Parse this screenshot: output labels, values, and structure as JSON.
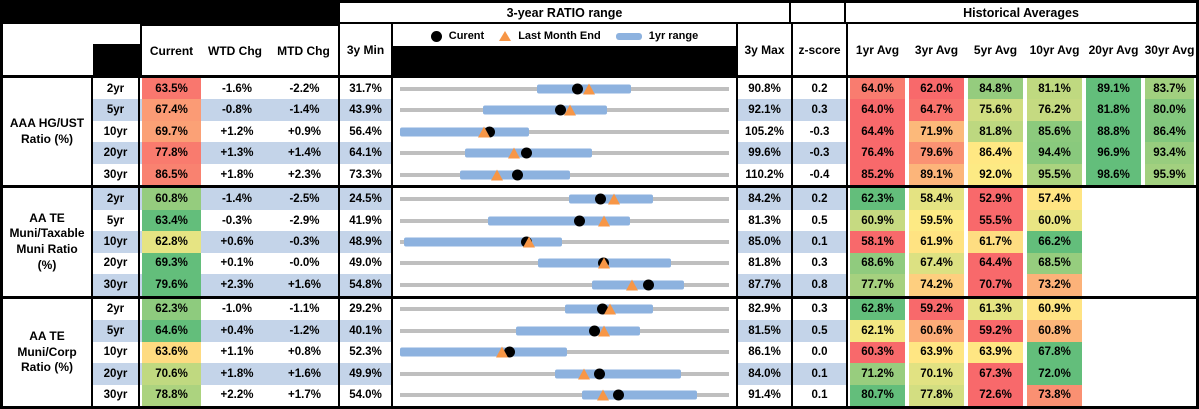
{
  "header": {
    "title_ratio_range": "3-year RATIO range",
    "title_historical": "Historical Averages",
    "col_current": "Current",
    "col_wtd": "WTD Chg",
    "col_mtd": "MTD Chg",
    "col_3y_min": "3y Min",
    "col_3y_max": "3y Max",
    "col_zscore": "z-score",
    "avg_cols": [
      "1yr Avg",
      "3yr Avg",
      "5yr Avg",
      "10yr Avg",
      "20yr Avg",
      "30yr Avg"
    ],
    "legend": {
      "current": "Curent",
      "last_month_end": "Last Month End",
      "range_1yr": "1yr range"
    }
  },
  "colors": {
    "band_blue": "#C4D4E9",
    "heat_red": "#F8696B",
    "heat_yellow": "#FFEB84",
    "heat_green": "#63BE7B",
    "range_bar_blue": "#8DB2DF",
    "track_gray": "#BFBFBF",
    "marker_orange": "#F79646",
    "marker_black": "#000000"
  },
  "chart_data": {
    "type": "table",
    "description": "Muni ratio ranges: gray track spans 3y Min to 3y Max; blue bar is 1yr range; black dot is Current; orange triangle is Last Month End; averages heat-mapped red-yellow-green per row",
    "groups": [
      {
        "label": "AAA HG/UST\nRatio (%)",
        "rows": [
          {
            "tenor": "2yr",
            "current": 63.5,
            "wtd": "-1.6%",
            "mtd": "-2.2%",
            "min3y": 31.7,
            "max3y": 90.8,
            "zscore": "0.2",
            "last_month_end": 65.7,
            "range1yr": [
              56.3,
              73.2
            ],
            "avgs": [
              64.0,
              62.0,
              84.8,
              81.1,
              89.1,
              83.7
            ]
          },
          {
            "tenor": "5yr",
            "current": 67.4,
            "wtd": "-0.8%",
            "mtd": "-1.4%",
            "min3y": 43.9,
            "max3y": 92.1,
            "zscore": "0.3",
            "last_month_end": 68.8,
            "range1yr": [
              56.0,
              74.2
            ],
            "avgs": [
              64.0,
              64.7,
              75.6,
              76.2,
              81.8,
              80.0
            ]
          },
          {
            "tenor": "10yr",
            "current": 69.7,
            "wtd": "+1.2%",
            "mtd": "+0.9%",
            "min3y": 56.4,
            "max3y": 105.2,
            "zscore": "-0.3",
            "last_month_end": 68.8,
            "range1yr": [
              56.4,
              75.5
            ],
            "avgs": [
              64.4,
              71.9,
              81.8,
              85.6,
              88.8,
              86.4
            ]
          },
          {
            "tenor": "20yr",
            "current": 77.8,
            "wtd": "+1.3%",
            "mtd": "+1.4%",
            "min3y": 64.1,
            "max3y": 99.6,
            "zscore": "-0.3",
            "last_month_end": 76.4,
            "range1yr": [
              71.1,
              84.8
            ],
            "avgs": [
              76.4,
              79.6,
              86.4,
              94.4,
              96.9,
              93.4
            ]
          },
          {
            "tenor": "30yr",
            "current": 86.5,
            "wtd": "+1.8%",
            "mtd": "+2.3%",
            "min3y": 73.3,
            "max3y": 110.2,
            "zscore": "-0.4",
            "last_month_end": 84.2,
            "range1yr": [
              80.0,
              92.4
            ],
            "avgs": [
              85.2,
              89.1,
              92.0,
              95.5,
              98.6,
              95.9
            ]
          }
        ]
      },
      {
        "label": "AA TE\nMuni/Taxable\nMuni Ratio\n(%)",
        "rows": [
          {
            "tenor": "2yr",
            "current": 60.8,
            "wtd": "-1.4%",
            "mtd": "-2.5%",
            "min3y": 24.5,
            "max3y": 84.2,
            "zscore": "0.2",
            "last_month_end": 63.3,
            "range1yr": [
              55.1,
              70.4
            ],
            "avgs": [
              62.3,
              58.4,
              52.9,
              57.4,
              null,
              null
            ]
          },
          {
            "tenor": "5yr",
            "current": 63.4,
            "wtd": "-0.3%",
            "mtd": "-2.9%",
            "min3y": 41.9,
            "max3y": 81.3,
            "zscore": "0.5",
            "last_month_end": 66.3,
            "range1yr": [
              52.4,
              69.4
            ],
            "avgs": [
              60.9,
              59.5,
              55.5,
              60.0,
              null,
              null
            ]
          },
          {
            "tenor": "10yr",
            "current": 62.8,
            "wtd": "+0.6%",
            "mtd": "-0.3%",
            "min3y": 48.9,
            "max3y": 85.0,
            "zscore": "0.1",
            "last_month_end": 63.1,
            "range1yr": [
              49.4,
              66.7
            ],
            "avgs": [
              58.1,
              61.9,
              61.7,
              66.2,
              null,
              null
            ]
          },
          {
            "tenor": "20yr",
            "current": 69.3,
            "wtd": "+0.1%",
            "mtd": "-0.0%",
            "min3y": 49.0,
            "max3y": 81.8,
            "zscore": "0.3",
            "last_month_end": 69.3,
            "range1yr": [
              62.8,
              76.0
            ],
            "avgs": [
              68.6,
              67.4,
              64.4,
              68.5,
              null,
              null
            ]
          },
          {
            "tenor": "30yr",
            "current": 79.6,
            "wtd": "+2.3%",
            "mtd": "+1.6%",
            "min3y": 54.8,
            "max3y": 87.7,
            "zscore": "0.8",
            "last_month_end": 78.0,
            "range1yr": [
              74.0,
              83.2
            ],
            "avgs": [
              77.7,
              74.2,
              70.7,
              73.2,
              null,
              null
            ]
          }
        ]
      },
      {
        "label": "AA TE\nMuni/Corp\nRatio (%)",
        "rows": [
          {
            "tenor": "2yr",
            "current": 62.3,
            "wtd": "-1.0%",
            "mtd": "-1.1%",
            "min3y": 29.2,
            "max3y": 82.9,
            "zscore": "0.3",
            "last_month_end": 63.4,
            "range1yr": [
              56.2,
              70.5
            ],
            "avgs": [
              62.8,
              59.2,
              61.3,
              60.9,
              null,
              null
            ]
          },
          {
            "tenor": "5yr",
            "current": 64.6,
            "wtd": "+0.4%",
            "mtd": "-1.2%",
            "min3y": 40.1,
            "max3y": 81.5,
            "zscore": "0.5",
            "last_month_end": 65.8,
            "range1yr": [
              54.7,
              70.3
            ],
            "avgs": [
              62.1,
              60.6,
              59.2,
              60.8,
              null,
              null
            ]
          },
          {
            "tenor": "10yr",
            "current": 63.6,
            "wtd": "+1.1%",
            "mtd": "+0.8%",
            "min3y": 52.3,
            "max3y": 86.1,
            "zscore": "0.0",
            "last_month_end": 62.8,
            "range1yr": [
              52.3,
              69.5
            ],
            "avgs": [
              60.3,
              63.9,
              63.9,
              67.8,
              null,
              null
            ]
          },
          {
            "tenor": "20yr",
            "current": 70.6,
            "wtd": "+1.8%",
            "mtd": "+1.6%",
            "min3y": 49.9,
            "max3y": 84.0,
            "zscore": "0.1",
            "last_month_end": 69.0,
            "range1yr": [
              66.0,
              79.0
            ],
            "avgs": [
              71.2,
              70.1,
              67.3,
              72.0,
              null,
              null
            ]
          },
          {
            "tenor": "30yr",
            "current": 78.8,
            "wtd": "+2.2%",
            "mtd": "+1.7%",
            "min3y": 54.0,
            "max3y": 91.4,
            "zscore": "0.1",
            "last_month_end": 77.1,
            "range1yr": [
              74.7,
              87.8
            ],
            "avgs": [
              80.7,
              77.8,
              72.6,
              73.8,
              null,
              null
            ]
          }
        ]
      }
    ]
  }
}
